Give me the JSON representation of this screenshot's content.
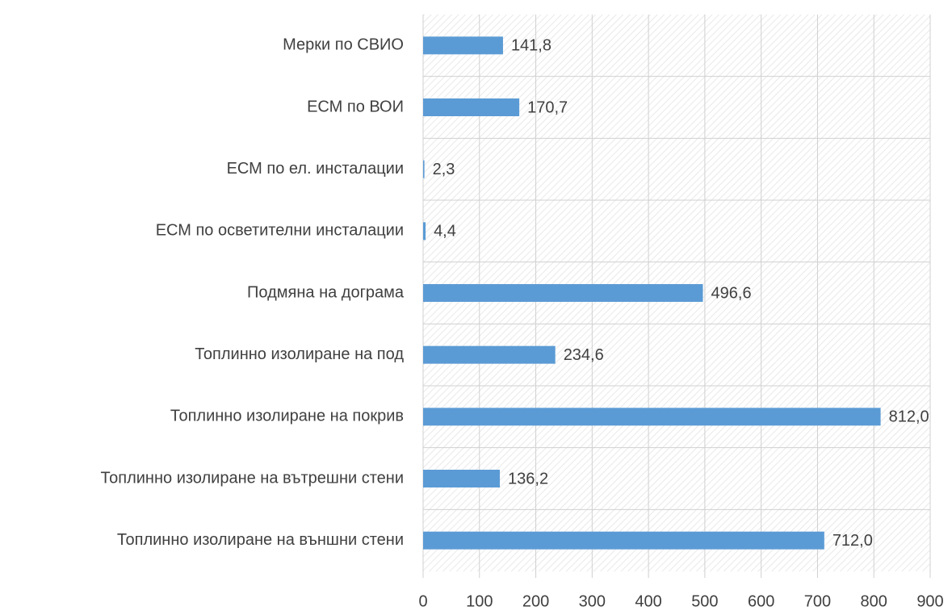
{
  "chart_data": {
    "type": "bar",
    "orientation": "horizontal",
    "categories": [
      "Мерки по СВИО",
      "ЕСМ по ВОИ",
      "ЕСМ по ел. инсталации",
      "ЕСМ по осветителни инсталации",
      "Подмяна на дограма",
      "Топлинно изолиране на под",
      "Топлинно изолиране на покрив",
      "Топлинно изолиране на вътрешни стени",
      "Топлинно изолиране на външни стени"
    ],
    "values": [
      141.8,
      170.7,
      2.3,
      4.4,
      496.6,
      234.6,
      812.0,
      136.2,
      712.0
    ],
    "value_labels": [
      "141,8",
      "170,7",
      "2,3",
      "4,4",
      "496,6",
      "234,6",
      "812,0",
      "136,2",
      "712,0"
    ],
    "color": "#5b9bd5",
    "xlim": [
      0,
      900
    ],
    "xticks": [
      0,
      100,
      200,
      300,
      400,
      500,
      600,
      700,
      800,
      900
    ],
    "grid": true
  }
}
